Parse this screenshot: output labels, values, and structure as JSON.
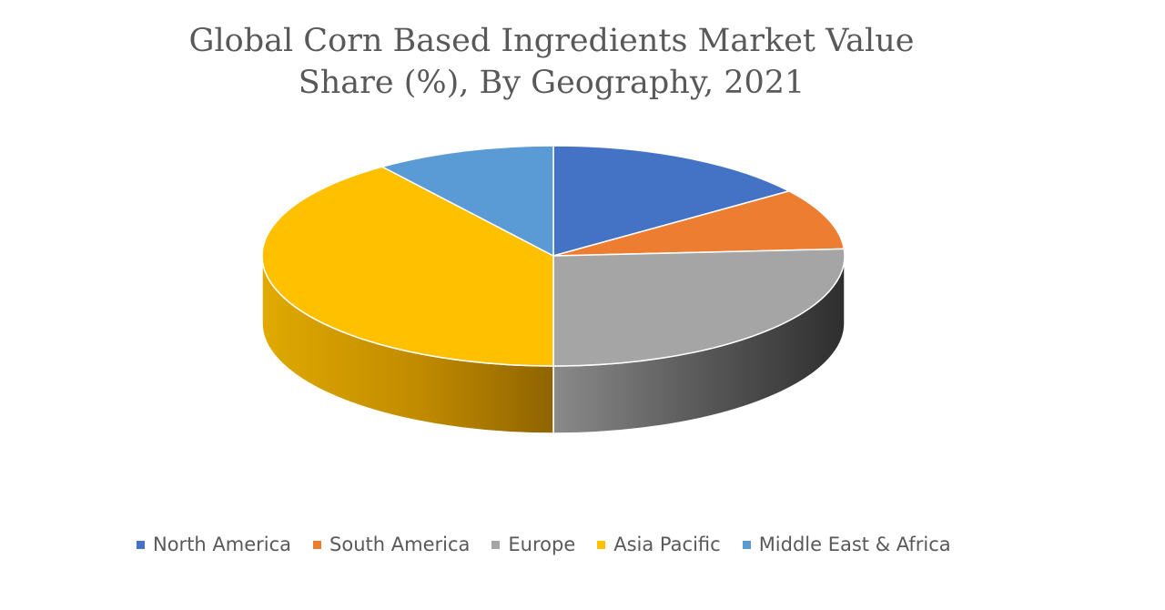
{
  "chart_data": {
    "type": "pie",
    "title_lines": [
      "Global Corn Based Ingredients Market Value",
      "Share (%), By Geography, 2021"
    ],
    "style": "3d",
    "legend_position": "bottom",
    "slices": [
      {
        "name": "North America",
        "value": 15,
        "color": "#4472C4"
      },
      {
        "name": "South America",
        "value": 9,
        "color": "#ED7D31"
      },
      {
        "name": "Europe",
        "value": 26,
        "color": "#A5A5A5"
      },
      {
        "name": "Asia Pacific",
        "value": 40,
        "color": "#FFC000"
      },
      {
        "name": "Middle East & Africa",
        "value": 10,
        "color": "#5B9BD5"
      }
    ]
  }
}
